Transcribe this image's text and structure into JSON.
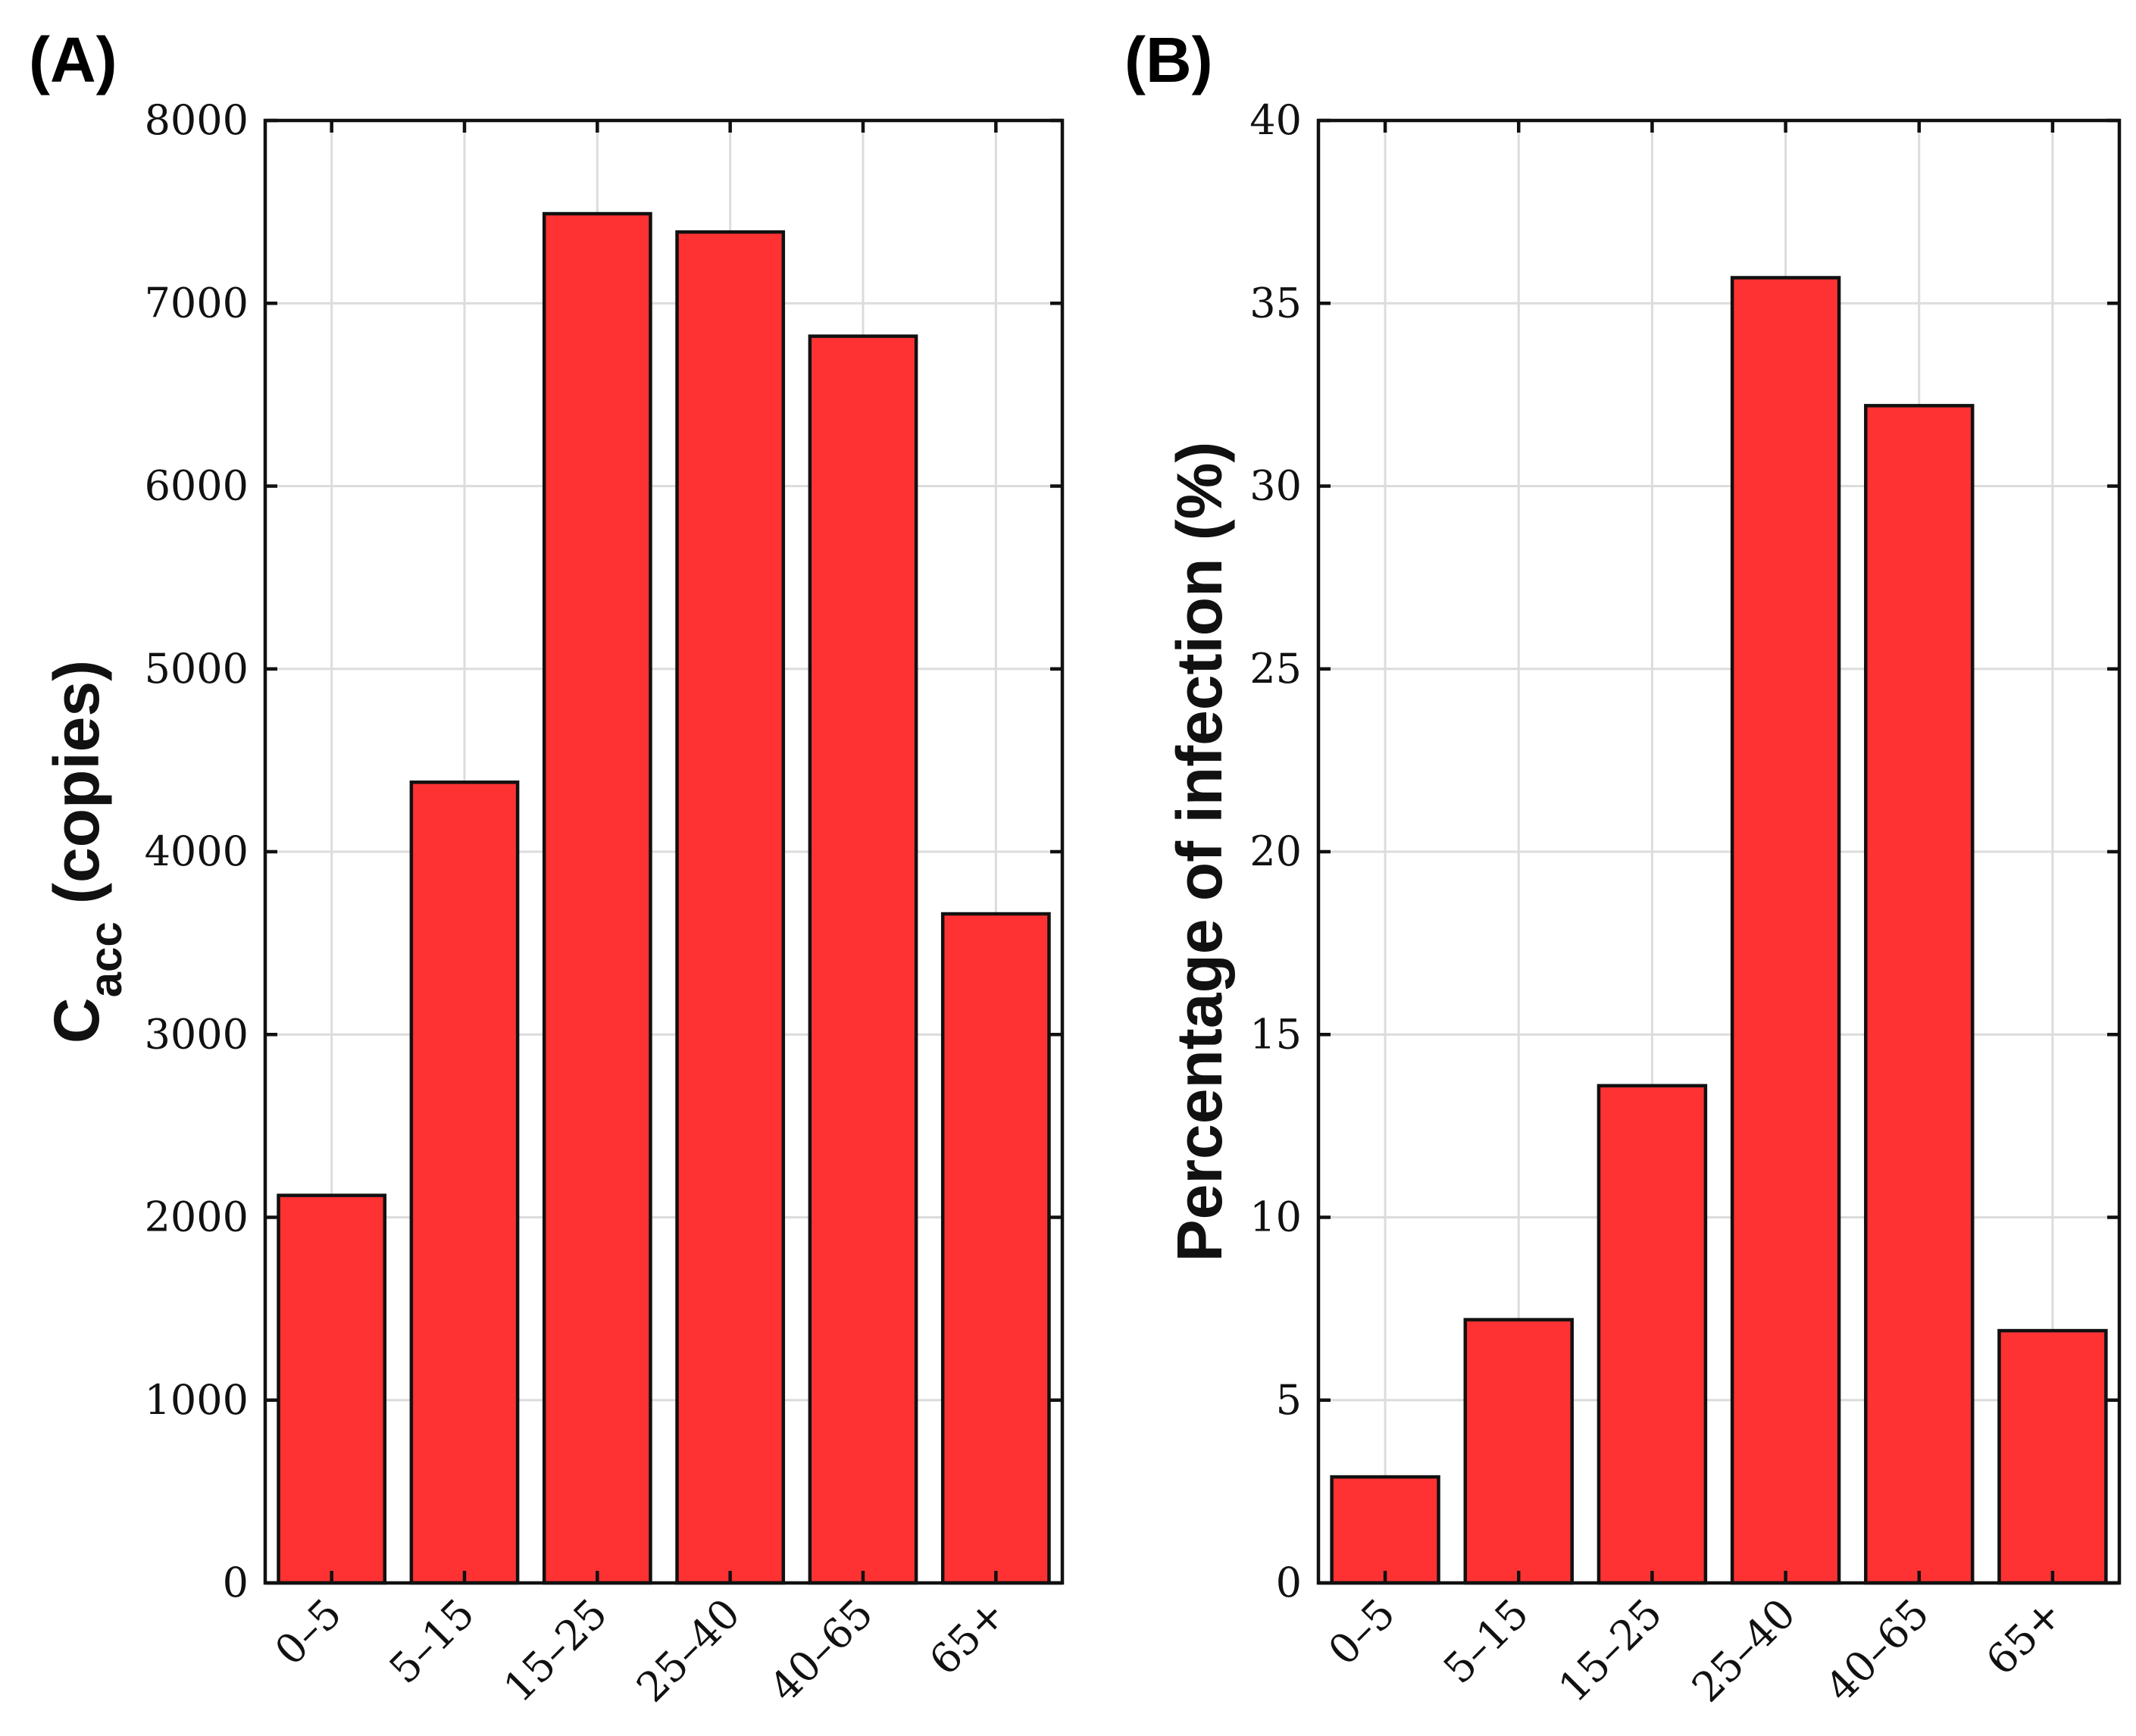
{
  "chart_data": [
    {
      "type": "bar",
      "panel_label": "(A)",
      "categories": [
        "0–5",
        "5–15",
        "15–25",
        "25–40",
        "40–65",
        "65+"
      ],
      "values": [
        2120,
        4380,
        7490,
        7390,
        6820,
        3660
      ],
      "ylabel_main": "C",
      "ylabel_sub": "acc",
      "ylabel_tail": " (copies)",
      "ylim": [
        0,
        8000
      ],
      "yticks": [
        "0",
        "1000",
        "2000",
        "3000",
        "4000",
        "5000",
        "6000",
        "7000",
        "8000"
      ],
      "bar_color": "#fe3233",
      "grid": true
    },
    {
      "type": "bar",
      "panel_label": "(B)",
      "categories": [
        "0–5",
        "5–15",
        "15–25",
        "25–40",
        "40–65",
        "65+"
      ],
      "values": [
        2.9,
        7.2,
        13.6,
        35.7,
        32.2,
        6.9
      ],
      "ylabel": "Percentage of infection (%)",
      "ylim": [
        0,
        40
      ],
      "yticks": [
        "0",
        "5",
        "10",
        "15",
        "20",
        "25",
        "30",
        "35",
        "40"
      ],
      "bar_color": "#fe3233",
      "grid": true
    }
  ]
}
